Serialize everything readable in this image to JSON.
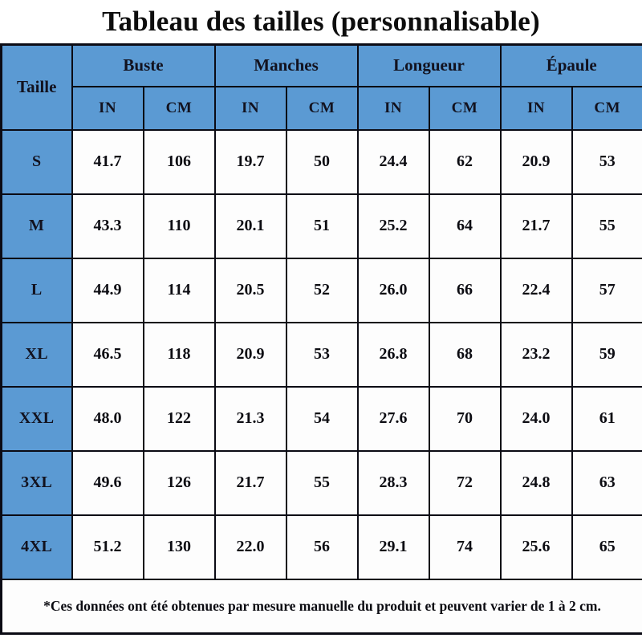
{
  "title": "Tableau des tailles (personnalisable)",
  "colors": {
    "header_blue": "#5b9ad3",
    "border": "#0b0b14",
    "cell_background": "#fdfdfd"
  },
  "table": {
    "corner_label": "Taille",
    "groups": [
      {
        "label": "Buste"
      },
      {
        "label": "Manches"
      },
      {
        "label": "Longueur"
      },
      {
        "label": "Épaule"
      }
    ],
    "unit_headers": [
      "IN",
      "CM",
      "IN",
      "CM",
      "IN",
      "CM",
      "IN",
      "CM"
    ],
    "rows": [
      {
        "size": "S",
        "values": [
          "41.7",
          "106",
          "19.7",
          "50",
          "24.4",
          "62",
          "20.9",
          "53"
        ]
      },
      {
        "size": "M",
        "values": [
          "43.3",
          "110",
          "20.1",
          "51",
          "25.2",
          "64",
          "21.7",
          "55"
        ]
      },
      {
        "size": "L",
        "values": [
          "44.9",
          "114",
          "20.5",
          "52",
          "26.0",
          "66",
          "22.4",
          "57"
        ]
      },
      {
        "size": "XL",
        "values": [
          "46.5",
          "118",
          "20.9",
          "53",
          "26.8",
          "68",
          "23.2",
          "59"
        ]
      },
      {
        "size": "XXL",
        "values": [
          "48.0",
          "122",
          "21.3",
          "54",
          "27.6",
          "70",
          "24.0",
          "61"
        ]
      },
      {
        "size": "3XL",
        "values": [
          "49.6",
          "126",
          "21.7",
          "55",
          "28.3",
          "72",
          "24.8",
          "63"
        ]
      },
      {
        "size": "4XL",
        "values": [
          "51.2",
          "130",
          "22.0",
          "56",
          "29.1",
          "74",
          "25.6",
          "65"
        ]
      }
    ],
    "footnote": "*Ces données ont été obtenues par mesure manuelle du produit et peuvent varier de 1 à 2 cm."
  },
  "chart_data": {
    "type": "table",
    "title": "Tableau des tailles (personnalisable)",
    "columns": [
      "Taille",
      "Buste IN",
      "Buste CM",
      "Manches IN",
      "Manches CM",
      "Longueur IN",
      "Longueur CM",
      "Épaule IN",
      "Épaule CM"
    ],
    "rows": [
      [
        "S",
        41.7,
        106,
        19.7,
        50,
        24.4,
        62,
        20.9,
        53
      ],
      [
        "M",
        43.3,
        110,
        20.1,
        51,
        25.2,
        64,
        21.7,
        55
      ],
      [
        "L",
        44.9,
        114,
        20.5,
        52,
        26.0,
        66,
        22.4,
        57
      ],
      [
        "XL",
        46.5,
        118,
        20.9,
        53,
        26.8,
        68,
        23.2,
        59
      ],
      [
        "XXL",
        48.0,
        122,
        21.3,
        54,
        27.6,
        70,
        24.0,
        61
      ],
      [
        "3XL",
        49.6,
        126,
        21.7,
        55,
        28.3,
        72,
        24.8,
        63
      ],
      [
        "4XL",
        51.2,
        130,
        22.0,
        56,
        29.1,
        74,
        25.6,
        65
      ]
    ],
    "footnote": "*Ces données ont été obtenues par mesure manuelle du produit et peuvent varier de 1 à 2 cm."
  }
}
